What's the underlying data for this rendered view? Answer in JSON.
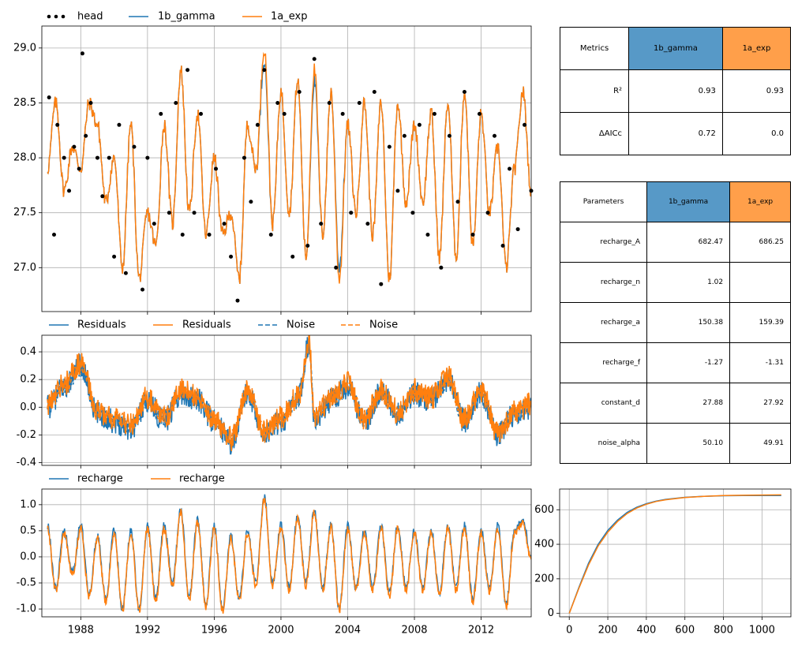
{
  "colors": {
    "series1": "#1f77b4",
    "series2": "#ff7f0e",
    "observed": "#000000",
    "header1": "#5799c7",
    "header2": "#ff9f4a",
    "grid": "#b0b0b0"
  },
  "chart_data": [
    {
      "type": "scatter+line",
      "panel": "head",
      "legend": [
        "head",
        "1b_gamma",
        "1a_exp"
      ],
      "legend_placement": "top-left, outside, horizontal",
      "xlim": [
        "1985-09-01",
        "2015-01-01"
      ],
      "ylim": [
        26.6,
        29.2
      ],
      "yticks": [
        27.0,
        27.5,
        28.0,
        28.5,
        29.0
      ],
      "xticks": [
        "1988",
        "1992",
        "1996",
        "2000",
        "2004",
        "2008",
        "2012"
      ],
      "grid": true,
      "series": [
        {
          "name": "1b_gamma",
          "color": "#1f77b4",
          "x": [
            1986.0,
            1986.5,
            1987.0,
            1987.5,
            1988.0,
            1988.5,
            1989.0,
            1989.5,
            1990.0,
            1990.5,
            1991.0,
            1991.5,
            1992.0,
            1992.5,
            1993.0,
            1993.5,
            1994.0,
            1994.5,
            1995.0,
            1995.5,
            1996.0,
            1996.5,
            1997.0,
            1997.5,
            1998.0,
            1998.5,
            1999.0,
            1999.5,
            2000.0,
            2000.5,
            2001.0,
            2001.5,
            2002.0,
            2002.5,
            2003.0,
            2003.5,
            2004.0,
            2004.5,
            2005.0,
            2005.5,
            2006.0,
            2006.5,
            2007.0,
            2007.5,
            2008.0,
            2008.5,
            2009.0,
            2009.5,
            2010.0,
            2010.5,
            2011.0,
            2011.5,
            2012.0,
            2012.5,
            2013.0,
            2013.5,
            2014.0,
            2014.5,
            2015.0
          ],
          "values": [
            27.9,
            28.5,
            27.7,
            28.1,
            27.9,
            28.5,
            28.3,
            27.6,
            28.0,
            27.0,
            28.3,
            26.9,
            27.5,
            27.2,
            28.3,
            27.4,
            28.8,
            27.5,
            28.4,
            27.3,
            28.0,
            27.3,
            27.5,
            26.9,
            28.3,
            27.9,
            28.9,
            27.4,
            28.6,
            27.5,
            28.7,
            27.1,
            28.7,
            27.3,
            28.6,
            27.0,
            28.3,
            27.5,
            28.5,
            27.3,
            28.5,
            26.9,
            28.5,
            27.6,
            28.3,
            27.6,
            28.4,
            27.1,
            28.5,
            27.1,
            28.6,
            27.2,
            28.4,
            27.5,
            28.1,
            27.0,
            27.9,
            28.6,
            27.7
          ]
        },
        {
          "name": "1a_exp",
          "color": "#ff7f0e",
          "x": [
            1986.0,
            1986.5,
            1987.0,
            1987.5,
            1988.0,
            1988.5,
            1989.0,
            1989.5,
            1990.0,
            1990.5,
            1991.0,
            1991.5,
            1992.0,
            1992.5,
            1993.0,
            1993.5,
            1994.0,
            1994.5,
            1995.0,
            1995.5,
            1996.0,
            1996.5,
            1997.0,
            1997.5,
            1998.0,
            1998.5,
            1999.0,
            1999.5,
            2000.0,
            2000.5,
            2001.0,
            2001.5,
            2002.0,
            2002.5,
            2003.0,
            2003.5,
            2004.0,
            2004.5,
            2005.0,
            2005.5,
            2006.0,
            2006.5,
            2007.0,
            2007.5,
            2008.0,
            2008.5,
            2009.0,
            2009.5,
            2010.0,
            2010.5,
            2011.0,
            2011.5,
            2012.0,
            2012.5,
            2013.0,
            2013.5,
            2014.0,
            2014.5,
            2015.0
          ],
          "values": [
            27.9,
            28.5,
            27.7,
            28.1,
            27.9,
            28.5,
            28.3,
            27.6,
            28.0,
            27.0,
            28.3,
            26.9,
            27.5,
            27.2,
            28.3,
            27.4,
            28.8,
            27.5,
            28.4,
            27.3,
            28.0,
            27.3,
            27.5,
            26.9,
            28.3,
            27.9,
            29.0,
            27.4,
            28.6,
            27.5,
            28.7,
            27.1,
            28.8,
            27.3,
            28.6,
            26.9,
            28.3,
            27.5,
            28.5,
            27.3,
            28.5,
            26.9,
            28.5,
            27.6,
            28.3,
            27.6,
            28.4,
            27.1,
            28.5,
            27.1,
            28.6,
            27.2,
            28.4,
            27.5,
            28.1,
            27.0,
            27.9,
            28.6,
            27.7
          ]
        },
        {
          "name": "head",
          "color": "#000000",
          "marker": "dot",
          "x": [
            1986.1,
            1986.4,
            1986.6,
            1987.0,
            1987.3,
            1987.6,
            1987.9,
            1988.1,
            1988.3,
            1988.6,
            1989.0,
            1989.3,
            1989.7,
            1990.0,
            1990.3,
            1990.7,
            1991.2,
            1991.7,
            1992.0,
            1992.4,
            1992.8,
            1993.3,
            1993.7,
            1994.1,
            1994.4,
            1994.8,
            1995.2,
            1995.7,
            1996.1,
            1996.6,
            1997.0,
            1997.4,
            1997.8,
            1998.2,
            1998.6,
            1999.0,
            1999.4,
            1999.8,
            2000.2,
            2000.7,
            2001.1,
            2001.6,
            2002.0,
            2002.4,
            2002.9,
            2003.3,
            2003.7,
            2004.2,
            2004.7,
            2005.2,
            2005.6,
            2006.0,
            2006.5,
            2007.0,
            2007.4,
            2007.9,
            2008.3,
            2008.8,
            2009.2,
            2009.6,
            2010.1,
            2010.6,
            2011.0,
            2011.5,
            2011.9,
            2012.4,
            2012.8,
            2013.3,
            2013.7,
            2014.2,
            2014.6,
            2015.0
          ],
          "values": [
            28.55,
            27.3,
            28.3,
            28.0,
            27.7,
            28.1,
            27.9,
            28.95,
            28.2,
            28.5,
            28.0,
            27.65,
            28.0,
            27.1,
            28.3,
            26.95,
            28.1,
            26.8,
            28.0,
            27.4,
            28.4,
            27.5,
            28.5,
            27.3,
            28.8,
            27.5,
            28.4,
            27.3,
            27.9,
            27.4,
            27.1,
            26.7,
            28.0,
            27.6,
            28.3,
            28.8,
            27.3,
            28.5,
            28.4,
            27.1,
            28.6,
            27.2,
            28.9,
            27.4,
            28.5,
            27.0,
            28.4,
            27.5,
            28.5,
            27.4,
            28.6,
            26.85,
            28.1,
            27.7,
            28.2,
            27.5,
            28.3,
            27.3,
            28.4,
            27.0,
            28.2,
            27.6,
            28.6,
            27.3,
            28.4,
            27.5,
            28.2,
            27.2,
            27.9,
            27.35,
            28.3,
            27.7
          ]
        }
      ]
    },
    {
      "type": "line",
      "panel": "residuals",
      "legend": [
        "Residuals",
        "Residuals",
        "Noise",
        "Noise"
      ],
      "legend_placement": "top-left, outside, horizontal",
      "xlim": [
        "1985-09-01",
        "2015-01-01"
      ],
      "ylim": [
        -0.42,
        0.52
      ],
      "yticks": [
        -0.4,
        -0.2,
        0.0,
        0.2,
        0.4
      ],
      "grid": true,
      "series": [
        {
          "name": "Residuals",
          "color": "#1f77b4",
          "x": [
            1986.0,
            1987.0,
            1988.0,
            1989.0,
            1990.0,
            1991.0,
            1992.0,
            1993.0,
            1994.0,
            1995.0,
            1996.0,
            1997.0,
            1998.0,
            1999.0,
            2000.0,
            2001.0,
            2001.7,
            2002.0,
            2003.0,
            2004.0,
            2005.0,
            2006.0,
            2007.0,
            2008.0,
            2009.0,
            2010.0,
            2011.0,
            2012.0,
            2013.0,
            2014.0,
            2015.0
          ],
          "values": [
            0.0,
            0.15,
            0.3,
            -0.05,
            -0.1,
            -0.15,
            0.05,
            -0.1,
            0.1,
            0.05,
            -0.1,
            -0.25,
            0.1,
            -0.2,
            -0.1,
            0.05,
            0.48,
            -0.1,
            0.05,
            0.15,
            -0.1,
            0.1,
            -0.05,
            0.1,
            0.05,
            0.2,
            -0.1,
            0.1,
            -0.2,
            -0.05,
            0.0
          ]
        },
        {
          "name": "Residuals",
          "color": "#ff7f0e",
          "x": [
            1986.0,
            1987.0,
            1988.0,
            1989.0,
            1990.0,
            1991.0,
            1992.0,
            1993.0,
            1994.0,
            1995.0,
            1996.0,
            1997.0,
            1998.0,
            1999.0,
            2000.0,
            2001.0,
            2001.7,
            2002.0,
            2003.0,
            2004.0,
            2005.0,
            2006.0,
            2007.0,
            2008.0,
            2009.0,
            2010.0,
            2011.0,
            2012.0,
            2013.0,
            2014.0,
            2015.0
          ],
          "values": [
            0.02,
            0.17,
            0.32,
            -0.03,
            -0.08,
            -0.13,
            0.07,
            -0.08,
            0.12,
            0.07,
            -0.08,
            -0.23,
            0.12,
            -0.18,
            -0.08,
            0.07,
            0.47,
            -0.08,
            0.07,
            0.17,
            -0.08,
            0.12,
            -0.03,
            0.12,
            0.07,
            0.22,
            -0.08,
            0.12,
            -0.18,
            -0.03,
            0.02
          ]
        }
      ]
    },
    {
      "type": "line",
      "panel": "recharge",
      "legend": [
        "recharge",
        "recharge"
      ],
      "legend_placement": "top-left, outside, horizontal",
      "xlim": [
        "1985-09-01",
        "2015-01-01"
      ],
      "ylim": [
        -1.15,
        1.3
      ],
      "yticks": [
        -1.0,
        -0.5,
        0.0,
        0.5,
        1.0
      ],
      "xticks": [
        "1988",
        "1992",
        "1996",
        "2000",
        "2004",
        "2008",
        "2012"
      ],
      "grid": true,
      "series": [
        {
          "name": "recharge",
          "color": "#1f77b4",
          "x": [
            1986.0,
            1986.5,
            1987.0,
            1987.5,
            1988.0,
            1988.5,
            1989.0,
            1989.5,
            1990.0,
            1990.5,
            1991.0,
            1991.5,
            1992.0,
            1992.5,
            1993.0,
            1993.5,
            1994.0,
            1994.5,
            1995.0,
            1995.5,
            1996.0,
            1996.5,
            1997.0,
            1997.5,
            1998.0,
            1998.5,
            1999.0,
            1999.5,
            2000.0,
            2000.5,
            2001.0,
            2001.5,
            2002.0,
            2002.5,
            2003.0,
            2003.5,
            2004.0,
            2004.5,
            2005.0,
            2005.5,
            2006.0,
            2006.5,
            2007.0,
            2007.5,
            2008.0,
            2008.5,
            2009.0,
            2009.5,
            2010.0,
            2010.5,
            2011.0,
            2011.5,
            2012.0,
            2012.5,
            2013.0,
            2013.5,
            2014.0,
            2014.5,
            2015.0
          ],
          "values": [
            0.6,
            -0.6,
            0.5,
            -0.3,
            0.6,
            -0.7,
            0.4,
            -0.8,
            0.5,
            -1.0,
            0.5,
            -1.0,
            0.6,
            -0.8,
            0.6,
            -0.5,
            0.9,
            -0.8,
            0.7,
            -0.9,
            0.6,
            -1.0,
            0.4,
            -0.8,
            0.5,
            -0.5,
            1.15,
            -0.5,
            0.6,
            -0.6,
            0.8,
            -0.5,
            0.9,
            -0.6,
            0.6,
            -1.0,
            0.6,
            -0.6,
            0.5,
            -0.6,
            0.6,
            -0.7,
            0.6,
            -0.6,
            0.5,
            -0.6,
            0.5,
            -0.7,
            0.6,
            -0.6,
            0.6,
            -0.8,
            0.5,
            -0.6,
            0.6,
            -0.9,
            0.5,
            0.7,
            0.0
          ]
        },
        {
          "name": "recharge",
          "color": "#ff7f0e",
          "x": [
            1986.0,
            1986.5,
            1987.0,
            1987.5,
            1988.0,
            1988.5,
            1989.0,
            1989.5,
            1990.0,
            1990.5,
            1991.0,
            1991.5,
            1992.0,
            1992.5,
            1993.0,
            1993.5,
            1994.0,
            1994.5,
            1995.0,
            1995.5,
            1996.0,
            1996.5,
            1997.0,
            1997.5,
            1998.0,
            1998.5,
            1999.0,
            1999.5,
            2000.0,
            2000.5,
            2001.0,
            2001.5,
            2002.0,
            2002.5,
            2003.0,
            2003.5,
            2004.0,
            2004.5,
            2005.0,
            2005.5,
            2006.0,
            2006.5,
            2007.0,
            2007.5,
            2008.0,
            2008.5,
            2009.0,
            2009.5,
            2010.0,
            2010.5,
            2011.0,
            2011.5,
            2012.0,
            2012.5,
            2013.0,
            2013.5,
            2014.0,
            2014.5,
            2015.0
          ],
          "values": [
            0.55,
            -0.65,
            0.45,
            -0.35,
            0.55,
            -0.75,
            0.35,
            -0.85,
            0.45,
            -1.02,
            0.45,
            -1.02,
            0.55,
            -0.85,
            0.55,
            -0.55,
            0.85,
            -0.85,
            0.65,
            -0.95,
            0.55,
            -1.02,
            0.35,
            -0.85,
            0.45,
            -0.55,
            1.1,
            -0.55,
            0.55,
            -0.65,
            0.75,
            -0.55,
            0.85,
            -0.65,
            0.55,
            -1.02,
            0.55,
            -0.65,
            0.45,
            -0.65,
            0.55,
            -0.75,
            0.55,
            -0.65,
            0.45,
            -0.65,
            0.45,
            -0.75,
            0.55,
            -0.65,
            0.55,
            -0.85,
            0.45,
            -0.65,
            0.55,
            -0.95,
            0.45,
            0.65,
            -0.05
          ]
        }
      ]
    },
    {
      "type": "line",
      "panel": "step response",
      "xlim": [
        -50,
        1150
      ],
      "ylim": [
        -20,
        720
      ],
      "xticks": [
        0,
        200,
        400,
        600,
        800,
        1000
      ],
      "yticks": [
        0,
        200,
        400,
        600
      ],
      "grid": true,
      "series": [
        {
          "name": "1b_gamma",
          "color": "#1f77b4",
          "x": [
            0,
            50,
            100,
            150,
            200,
            250,
            300,
            350,
            400,
            450,
            500,
            600,
            700,
            800,
            900,
            1000,
            1100
          ],
          "values": [
            0,
            150,
            290,
            400,
            480,
            540,
            585,
            615,
            635,
            650,
            660,
            672,
            678,
            681,
            682,
            682.3,
            682.4
          ]
        },
        {
          "name": "1a_exp",
          "color": "#ff7f0e",
          "x": [
            0,
            50,
            100,
            150,
            200,
            250,
            300,
            350,
            400,
            450,
            500,
            600,
            700,
            800,
            900,
            1000,
            1100
          ],
          "values": [
            0,
            145,
            280,
            390,
            470,
            532,
            578,
            610,
            632,
            648,
            658,
            671,
            678,
            682,
            684,
            685.5,
            686
          ]
        }
      ]
    }
  ],
  "legends": {
    "head": [
      "head",
      "1b_gamma",
      "1a_exp"
    ],
    "residuals": [
      "Residuals",
      "Residuals",
      "Noise",
      "Noise"
    ],
    "recharge": [
      "recharge",
      "recharge"
    ]
  },
  "tables": {
    "metrics": {
      "header": [
        "Metrics",
        "1b_gamma",
        "1a_exp"
      ],
      "rows": [
        [
          "R²",
          "0.93",
          "0.93"
        ],
        [
          "ΔAICc",
          "0.72",
          "0.0"
        ]
      ]
    },
    "parameters": {
      "header": [
        "Parameters",
        "1b_gamma",
        "1a_exp"
      ],
      "rows": [
        [
          "recharge_A",
          "682.47",
          "686.25"
        ],
        [
          "recharge_n",
          "1.02",
          ""
        ],
        [
          "recharge_a",
          "150.38",
          "159.39"
        ],
        [
          "recharge_f",
          "-1.27",
          "-1.31"
        ],
        [
          "constant_d",
          "27.88",
          "27.92"
        ],
        [
          "noise_alpha",
          "50.10",
          "49.91"
        ]
      ]
    }
  }
}
